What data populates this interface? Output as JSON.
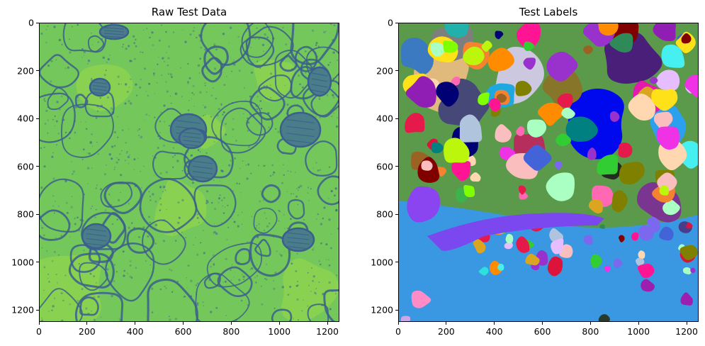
{
  "figure": {
    "panels": [
      {
        "title": "Raw Test Data",
        "image_desc": "raw-em-micrograph",
        "x_ticks": [
          "0",
          "200",
          "400",
          "600",
          "800",
          "1000",
          "1200"
        ],
        "y_ticks": [
          "0",
          "200",
          "400",
          "600",
          "800",
          "1000",
          "1200"
        ],
        "colors": {
          "background": "#74c75a",
          "membrane": "#3b5f8c",
          "bright": "#8fd34e"
        }
      },
      {
        "title": "Test Labels",
        "image_desc": "segmentation-label-map",
        "x_ticks": [
          "0",
          "200",
          "400",
          "600",
          "800",
          "1000",
          "1200"
        ],
        "y_ticks": [
          "0",
          "200",
          "400",
          "600",
          "800",
          "1000",
          "1200"
        ],
        "colors": {
          "background": "#3a97e2"
        }
      }
    ],
    "axis_range": {
      "x": [
        0,
        1250
      ],
      "y": [
        1250,
        0
      ]
    }
  }
}
